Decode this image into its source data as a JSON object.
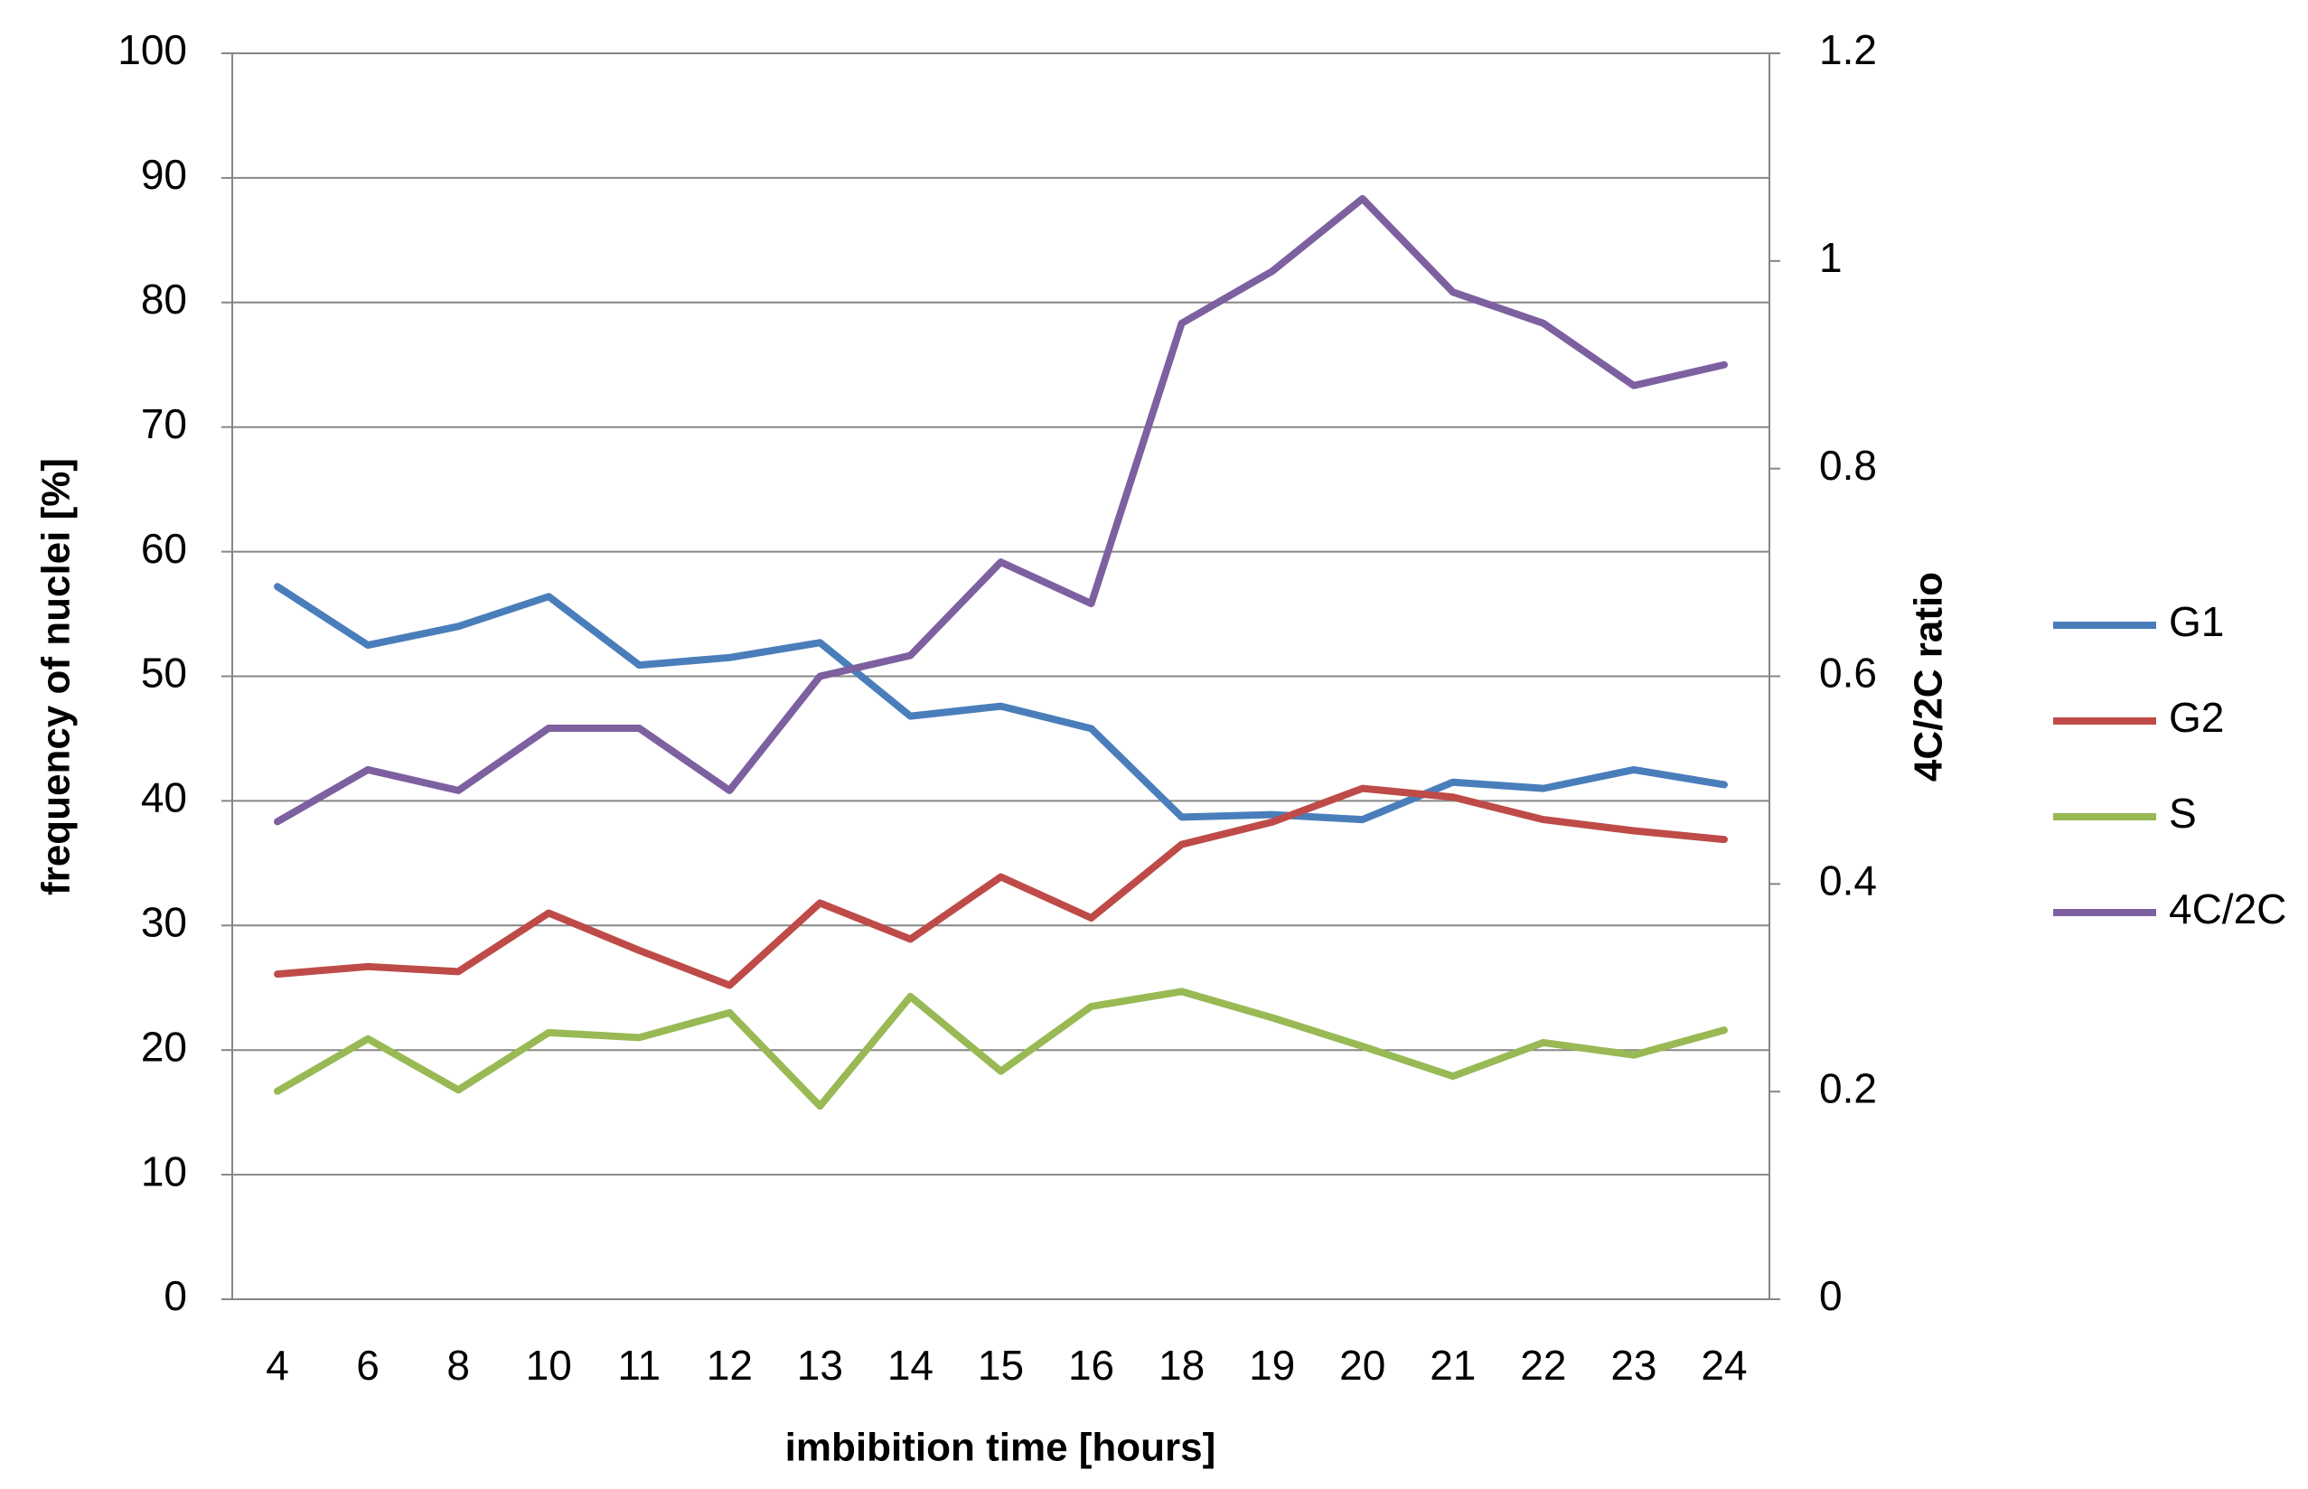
{
  "chart_data": {
    "type": "line",
    "x_label": "imbibition time [hours]",
    "y_label": "frequency of nuclei [%]",
    "y2_label": "4C/2C ratio",
    "categories": [
      "4",
      "6",
      "8",
      "10",
      "11",
      "12",
      "13",
      "14",
      "15",
      "16",
      "18",
      "19",
      "20",
      "21",
      "22",
      "23",
      "24"
    ],
    "series": [
      {
        "name": "G1",
        "color": "#4a7ebb",
        "values": [
          57.2,
          52.5,
          54,
          56.4,
          50.9,
          51.5,
          52.7,
          46.8,
          47.6,
          45.8,
          38.7,
          38.9,
          38.5,
          41.5,
          41,
          42.5,
          41.3
        ]
      },
      {
        "name": "G2",
        "color": "#be4b48",
        "values": [
          26.1,
          26.7,
          26.3,
          31,
          28,
          25.2,
          31.8,
          28.9,
          33.9,
          30.6,
          36.5,
          38.3,
          41,
          40.3,
          38.5,
          37.6,
          36.9
        ]
      },
      {
        "name": "S",
        "color": "#98b954",
        "values": [
          16.7,
          20.9,
          16.8,
          21.4,
          21,
          23,
          15.5,
          24.3,
          18.3,
          23.5,
          24.7,
          22.6,
          20.3,
          17.9,
          20.6,
          19.6,
          21.6
        ]
      },
      {
        "name": "4C/2C",
        "color": "#7d60a0",
        "axis": "y2",
        "values": [
          0.46,
          0.51,
          0.49,
          0.55,
          0.55,
          0.49,
          0.6,
          0.62,
          0.71,
          0.67,
          0.94,
          0.99,
          1.06,
          0.97,
          0.94,
          0.88,
          0.9
        ]
      }
    ],
    "ylim": [
      0,
      100
    ],
    "yticks": [
      0,
      10,
      20,
      30,
      40,
      50,
      60,
      70,
      80,
      90,
      100
    ],
    "y2lim": [
      0,
      1.2
    ],
    "y2ticks": [
      0,
      0.2,
      0.4,
      0.6,
      0.8,
      1,
      1.2
    ],
    "grid": true,
    "legend": "right"
  }
}
